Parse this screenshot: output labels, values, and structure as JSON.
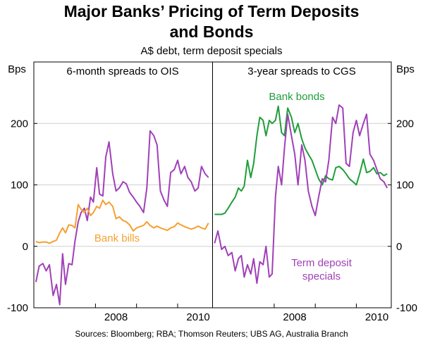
{
  "chart_data": {
    "type": "line",
    "title_lines": [
      "Major Banks’ Pricing of Term Deposits",
      "and Bonds"
    ],
    "subtitle": "A$ debt, term deposit specials",
    "y_unit_left": "Bps",
    "y_unit_right": "Bps",
    "ylim": [
      -100,
      300
    ],
    "yticks": [
      -100,
      0,
      100,
      200
    ],
    "ytick_labels": [
      "-100",
      "0",
      "100",
      "200"
    ],
    "x_tick_labels": [
      "2008",
      "2010"
    ],
    "source": "Sources: Bloomberg; RBA; Thomson Reuters; UBS AG, Australia Branch",
    "colors": {
      "purple": "#a040b8",
      "orange": "#f5a030",
      "green": "#1f9e3a",
      "axis": "#000000",
      "grid": "#d0d0d0"
    },
    "panels": [
      {
        "title": "6-month spreads to OIS",
        "xlim": [
          2006.5,
          2010.85
        ],
        "series": [
          {
            "name": "Term deposit specials",
            "color": "purple",
            "x": [
              2006.55,
              2006.63,
              2006.72,
              2006.8,
              2006.88,
              2006.97,
              2007.05,
              2007.13,
              2007.2,
              2007.27,
              2007.35,
              2007.43,
              2007.5,
              2007.58,
              2007.65,
              2007.73,
              2007.8,
              2007.88,
              2007.95,
              2008.03,
              2008.1,
              2008.18,
              2008.25,
              2008.33,
              2008.42,
              2008.5,
              2008.58,
              2008.67,
              2008.75,
              2008.83,
              2008.92,
              2009.0,
              2009.08,
              2009.17,
              2009.25,
              2009.33,
              2009.42,
              2009.5,
              2009.58,
              2009.67,
              2009.75,
              2009.83,
              2009.92,
              2010.0,
              2010.08,
              2010.17,
              2010.25,
              2010.33,
              2010.42,
              2010.5,
              2010.58,
              2010.67,
              2010.75
            ],
            "y": [
              -58,
              -32,
              -28,
              -40,
              -30,
              -80,
              -62,
              -95,
              -12,
              -62,
              -28,
              -30,
              8,
              40,
              55,
              62,
              42,
              80,
              72,
              128,
              85,
              82,
              145,
              170,
              118,
              90,
              95,
              105,
              102,
              88,
              80,
              72,
              65,
              55,
              95,
              188,
              180,
              165,
              90,
              75,
              65,
              120,
              125,
              140,
              118,
              130,
              112,
              105,
              90,
              95,
              130,
              118,
              112
            ]
          },
          {
            "name": "Bank bills",
            "color": "orange",
            "x": [
              2006.55,
              2006.63,
              2006.72,
              2006.8,
              2006.88,
              2006.97,
              2007.05,
              2007.13,
              2007.2,
              2007.27,
              2007.35,
              2007.43,
              2007.5,
              2007.58,
              2007.65,
              2007.73,
              2007.8,
              2007.88,
              2007.95,
              2008.03,
              2008.1,
              2008.18,
              2008.25,
              2008.33,
              2008.42,
              2008.5,
              2008.58,
              2008.67,
              2008.75,
              2008.83,
              2008.92,
              2009.0,
              2009.08,
              2009.17,
              2009.25,
              2009.33,
              2009.42,
              2009.5,
              2009.58,
              2009.67,
              2009.75,
              2009.83,
              2009.92,
              2010.0,
              2010.08,
              2010.17,
              2010.25,
              2010.33,
              2010.42,
              2010.5,
              2010.58,
              2010.67,
              2010.75
            ],
            "y": [
              8,
              6,
              7,
              7,
              5,
              8,
              10,
              22,
              30,
              22,
              35,
              34,
              30,
              68,
              60,
              55,
              62,
              50,
              55,
              65,
              62,
              75,
              68,
              72,
              65,
              45,
              48,
              42,
              40,
              35,
              25,
              30,
              32,
              34,
              40,
              34,
              30,
              33,
              30,
              28,
              26,
              30,
              32,
              38,
              35,
              32,
              30,
              28,
              30,
              33,
              30,
              28,
              38
            ]
          }
        ],
        "labels": [
          {
            "text": "Bank bills",
            "color": "orange"
          }
        ]
      },
      {
        "title": "3-year spreads to CGS",
        "xlim": [
          2006.5,
          2010.85
        ],
        "series": [
          {
            "name": "Bank bonds",
            "color": "green",
            "x": [
              2006.55,
              2006.63,
              2006.72,
              2006.8,
              2006.88,
              2006.97,
              2007.05,
              2007.13,
              2007.2,
              2007.27,
              2007.35,
              2007.43,
              2007.5,
              2007.58,
              2007.65,
              2007.73,
              2007.8,
              2007.88,
              2007.95,
              2008.03,
              2008.1,
              2008.18,
              2008.25,
              2008.33,
              2008.42,
              2008.5,
              2008.58,
              2008.67,
              2008.75,
              2008.83,
              2008.92,
              2009.0,
              2009.08,
              2009.17,
              2009.25,
              2009.33,
              2009.42,
              2009.5,
              2009.58,
              2009.67,
              2009.75,
              2009.83,
              2009.92,
              2010.0,
              2010.08,
              2010.17,
              2010.25,
              2010.33,
              2010.42,
              2010.5,
              2010.58,
              2010.67,
              2010.75
            ],
            "y": [
              52,
              52,
              52,
              54,
              62,
              72,
              80,
              95,
              90,
              98,
              140,
              112,
              135,
              180,
              210,
              205,
              180,
              205,
              200,
              205,
              228,
              185,
              180,
              225,
              210,
              185,
              200,
              175,
              160,
              150,
              140,
              125,
              110,
              100,
              115,
              110,
              108,
              128,
              130,
              125,
              118,
              110,
              105,
              100,
              118,
              142,
              120,
              122,
              128,
              118,
              120,
              115,
              118
            ]
          },
          {
            "name": "Term deposit specials",
            "color": "purple",
            "x": [
              2006.55,
              2006.63,
              2006.72,
              2006.8,
              2006.88,
              2006.97,
              2007.05,
              2007.13,
              2007.2,
              2007.27,
              2007.35,
              2007.43,
              2007.5,
              2007.58,
              2007.65,
              2007.73,
              2007.8,
              2007.88,
              2007.95,
              2008.03,
              2008.1,
              2008.18,
              2008.25,
              2008.33,
              2008.42,
              2008.5,
              2008.58,
              2008.67,
              2008.75,
              2008.83,
              2008.92,
              2009.0,
              2009.08,
              2009.17,
              2009.25,
              2009.33,
              2009.42,
              2009.5,
              2009.58,
              2009.67,
              2009.75,
              2009.83,
              2009.92,
              2010.0,
              2010.08,
              2010.17,
              2010.25,
              2010.33,
              2010.42,
              2010.5,
              2010.58,
              2010.67,
              2010.75
            ],
            "y": [
              5,
              25,
              -5,
              0,
              -15,
              -10,
              -40,
              -20,
              -15,
              -50,
              -30,
              -45,
              -20,
              -60,
              -25,
              -30,
              0,
              -50,
              -45,
              80,
              130,
              100,
              160,
              215,
              180,
              150,
              100,
              165,
              140,
              90,
              65,
              50,
              80,
              110,
              105,
              140,
              210,
              200,
              230,
              225,
              135,
              130,
              185,
              205,
              180,
              200,
              215,
              150,
              140,
              125,
              110,
              105,
              95
            ]
          }
        ],
        "labels": [
          {
            "text": "Bank bonds",
            "color": "green"
          },
          {
            "text": "Term deposit",
            "color": "purple"
          },
          {
            "text": "specials",
            "color": "purple"
          }
        ]
      }
    ]
  }
}
